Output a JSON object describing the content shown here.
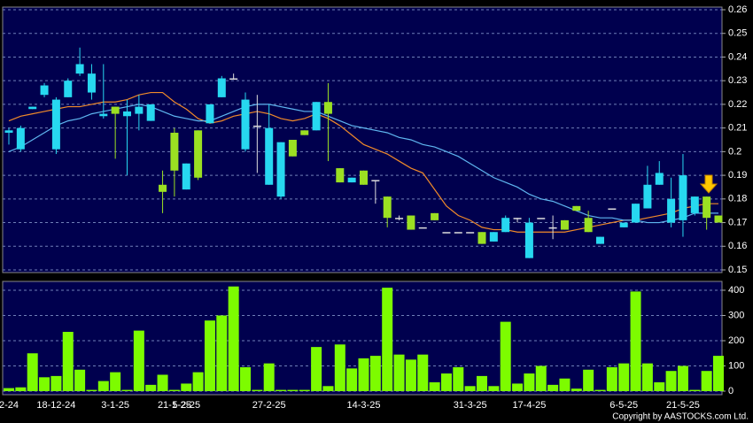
{
  "chart_data": [
    {
      "type": "candlestick",
      "open": [
        0.208,
        0.201,
        0.218,
        0.224,
        0.201,
        0.223,
        0.233,
        0.225,
        0.215,
        0.219,
        0.215,
        0.216,
        0.213,
        0.186,
        0.208,
        0.184,
        0.209,
        0.212,
        0.223,
        0.231,
        0.201,
        0.211,
        0.186,
        0.181,
        0.205,
        0.209,
        0.209,
        0.221,
        0.193,
        0.187,
        0.192,
        0.188,
        0.181,
        0.172,
        0.173,
        0.168,
        0.174,
        0.166,
        0.166,
        0.166,
        0.166,
        0.162,
        0.166,
        0.172,
        0.155,
        0.172,
        0.168,
        0.171,
        0.177,
        0.172,
        0.161,
        0.176,
        0.168,
        0.17,
        0.176,
        0.186,
        0.17,
        0.171,
        0.174,
        0.181,
        0.173
      ],
      "high": [
        0.21,
        0.211,
        0.219,
        0.229,
        0.223,
        0.231,
        0.244,
        0.237,
        0.237,
        0.219,
        0.222,
        0.224,
        0.22,
        0.192,
        0.21,
        0.195,
        0.209,
        0.22,
        0.232,
        0.233,
        0.225,
        0.224,
        0.22,
        0.204,
        0.205,
        0.209,
        0.221,
        0.229,
        0.193,
        0.189,
        0.192,
        0.188,
        0.181,
        0.173,
        0.173,
        0.168,
        0.174,
        0.166,
        0.166,
        0.166,
        0.166,
        0.166,
        0.173,
        0.172,
        0.172,
        0.172,
        0.173,
        0.171,
        0.177,
        0.175,
        0.164,
        0.176,
        0.17,
        0.178,
        0.194,
        0.196,
        0.189,
        0.199,
        0.181,
        0.181,
        0.173
      ],
      "low": [
        0.203,
        0.2,
        0.218,
        0.223,
        0.199,
        0.223,
        0.232,
        0.222,
        0.214,
        0.197,
        0.19,
        0.209,
        0.213,
        0.174,
        0.181,
        0.184,
        0.188,
        0.212,
        0.223,
        0.231,
        0.2,
        0.191,
        0.186,
        0.18,
        0.198,
        0.207,
        0.209,
        0.196,
        0.187,
        0.187,
        0.186,
        0.178,
        0.168,
        0.171,
        0.167,
        0.168,
        0.171,
        0.166,
        0.166,
        0.166,
        0.161,
        0.162,
        0.166,
        0.17,
        0.155,
        0.172,
        0.163,
        0.167,
        0.175,
        0.166,
        0.161,
        0.176,
        0.168,
        0.17,
        0.176,
        0.186,
        0.168,
        0.164,
        0.173,
        0.167,
        0.17
      ],
      "close": [
        0.209,
        0.21,
        0.219,
        0.228,
        0.222,
        0.23,
        0.237,
        0.233,
        0.216,
        0.216,
        0.217,
        0.219,
        0.22,
        0.183,
        0.192,
        0.195,
        0.189,
        0.22,
        0.231,
        0.231,
        0.222,
        0.211,
        0.21,
        0.204,
        0.198,
        0.207,
        0.221,
        0.216,
        0.187,
        0.189,
        0.186,
        0.188,
        0.172,
        0.172,
        0.167,
        0.168,
        0.171,
        0.166,
        0.166,
        0.166,
        0.161,
        0.166,
        0.172,
        0.172,
        0.17,
        0.172,
        0.168,
        0.167,
        0.175,
        0.166,
        0.164,
        0.176,
        0.17,
        0.178,
        0.186,
        0.191,
        0.18,
        0.19,
        0.181,
        0.172,
        0.17
      ],
      "up_color": "#27d8f0",
      "down_color": "#9be022",
      "doji_color": "#dddddd",
      "lines": [
        {
          "color": "#f08a2a",
          "values": [
            0.213,
            0.215,
            0.216,
            0.217,
            0.218,
            0.219,
            0.219,
            0.22,
            0.221,
            0.221,
            0.222,
            0.224,
            0.225,
            0.225,
            0.221,
            0.218,
            0.214,
            0.212,
            0.213,
            0.215,
            0.216,
            0.217,
            0.216,
            0.214,
            0.213,
            0.214,
            0.216,
            0.214,
            0.211,
            0.207,
            0.203,
            0.201,
            0.199,
            0.196,
            0.193,
            0.191,
            0.184,
            0.177,
            0.173,
            0.171,
            0.168,
            0.167,
            0.167,
            0.166,
            0.166,
            0.166,
            0.166,
            0.166,
            0.167,
            0.168,
            0.169,
            0.17,
            0.171,
            0.171,
            0.172,
            0.173,
            0.174,
            0.176,
            0.177,
            0.178,
            0.178
          ]
        },
        {
          "color": "#5fb6f0",
          "values": [
            0.2,
            0.202,
            0.205,
            0.208,
            0.211,
            0.213,
            0.214,
            0.216,
            0.217,
            0.218,
            0.219,
            0.22,
            0.219,
            0.217,
            0.215,
            0.214,
            0.213,
            0.213,
            0.215,
            0.217,
            0.219,
            0.22,
            0.22,
            0.219,
            0.218,
            0.217,
            0.217,
            0.215,
            0.213,
            0.211,
            0.21,
            0.209,
            0.208,
            0.206,
            0.205,
            0.203,
            0.202,
            0.2,
            0.198,
            0.195,
            0.192,
            0.189,
            0.187,
            0.185,
            0.182,
            0.18,
            0.179,
            0.177,
            0.175,
            0.173,
            0.172,
            0.172,
            0.171,
            0.171,
            0.17,
            0.17,
            0.171,
            0.172,
            0.174,
            0.174,
            0.174
          ]
        }
      ],
      "ylim": [
        0.15,
        0.26
      ],
      "yticks": [
        0.15,
        0.16,
        0.17,
        0.18,
        0.19,
        0.2,
        0.21,
        0.22,
        0.23,
        0.24,
        0.25,
        0.26
      ],
      "grid": true
    },
    {
      "type": "bar",
      "categories": [
        "2-24",
        null,
        null,
        null,
        "18-12-24",
        null,
        null,
        null,
        null,
        "3-1-25",
        null,
        null,
        null,
        null,
        "21-1-25",
        "5-2-25",
        null,
        null,
        null,
        null,
        null,
        null,
        "27-2-25",
        null,
        null,
        null,
        null,
        null,
        null,
        null,
        "14-3-25",
        null,
        null,
        null,
        null,
        null,
        null,
        null,
        null,
        "31-3-25",
        null,
        null,
        null,
        null,
        "17-4-25",
        null,
        null,
        null,
        null,
        null,
        null,
        null,
        "6-5-25",
        null,
        null,
        null,
        null,
        "21-5-25",
        null,
        null,
        null
      ],
      "values": [
        12,
        15,
        150,
        55,
        60,
        235,
        85,
        5,
        40,
        75,
        5,
        240,
        25,
        65,
        5,
        30,
        75,
        280,
        300,
        415,
        95,
        5,
        110,
        5,
        5,
        5,
        175,
        20,
        185,
        90,
        130,
        140,
        410,
        145,
        125,
        145,
        35,
        70,
        95,
        20,
        60,
        20,
        275,
        30,
        70,
        100,
        25,
        50,
        10,
        85,
        5,
        95,
        110,
        395,
        110,
        35,
        80,
        100,
        5,
        80,
        140
      ],
      "color": "#7dfc00",
      "ylim": [
        0,
        428
      ],
      "yticks": [
        0,
        100,
        200,
        300,
        400
      ],
      "grid": true
    }
  ],
  "copyright": "Copyright by AASTOCKS.com Ltd."
}
